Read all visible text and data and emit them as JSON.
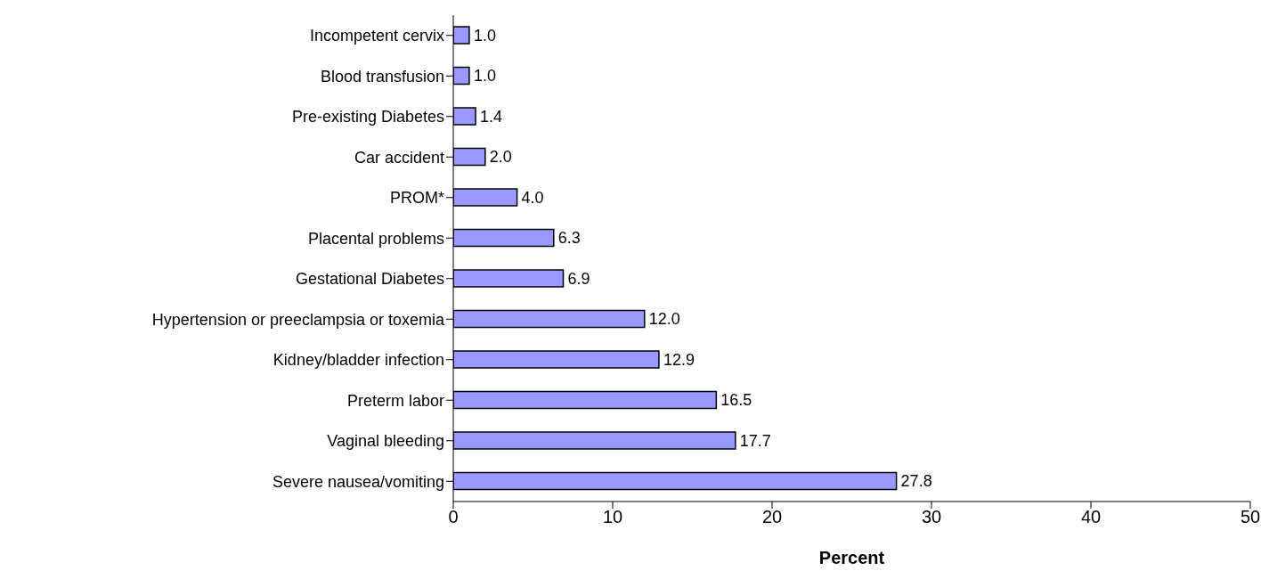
{
  "chart_data": {
    "type": "bar",
    "orientation": "horizontal",
    "xlabel": "Percent",
    "categories": [
      "Incompetent cervix",
      "Blood transfusion",
      "Pre-existing Diabetes",
      "Car accident",
      "PROM*",
      "Placental problems",
      "Gestational Diabetes",
      "Hypertension or preeclampsia or toxemia",
      "Kidney/bladder infection",
      "Preterm labor",
      "Vaginal bleeding",
      "Severe nausea/vomiting"
    ],
    "values": [
      1.0,
      1.0,
      1.4,
      2.0,
      4.0,
      6.3,
      6.9,
      12.0,
      12.9,
      16.5,
      17.7,
      27.8
    ],
    "value_labels": [
      "1.0",
      "1.0",
      "1.4",
      "2.0",
      "4.0",
      "6.3",
      "6.9",
      "12.0",
      "12.9",
      "16.5",
      "17.7",
      "27.8"
    ],
    "color": "#9999ff",
    "xlim": [
      0,
      50
    ],
    "xticks": [
      0,
      10,
      20,
      30,
      40,
      50
    ],
    "grid": false,
    "legend": false
  }
}
